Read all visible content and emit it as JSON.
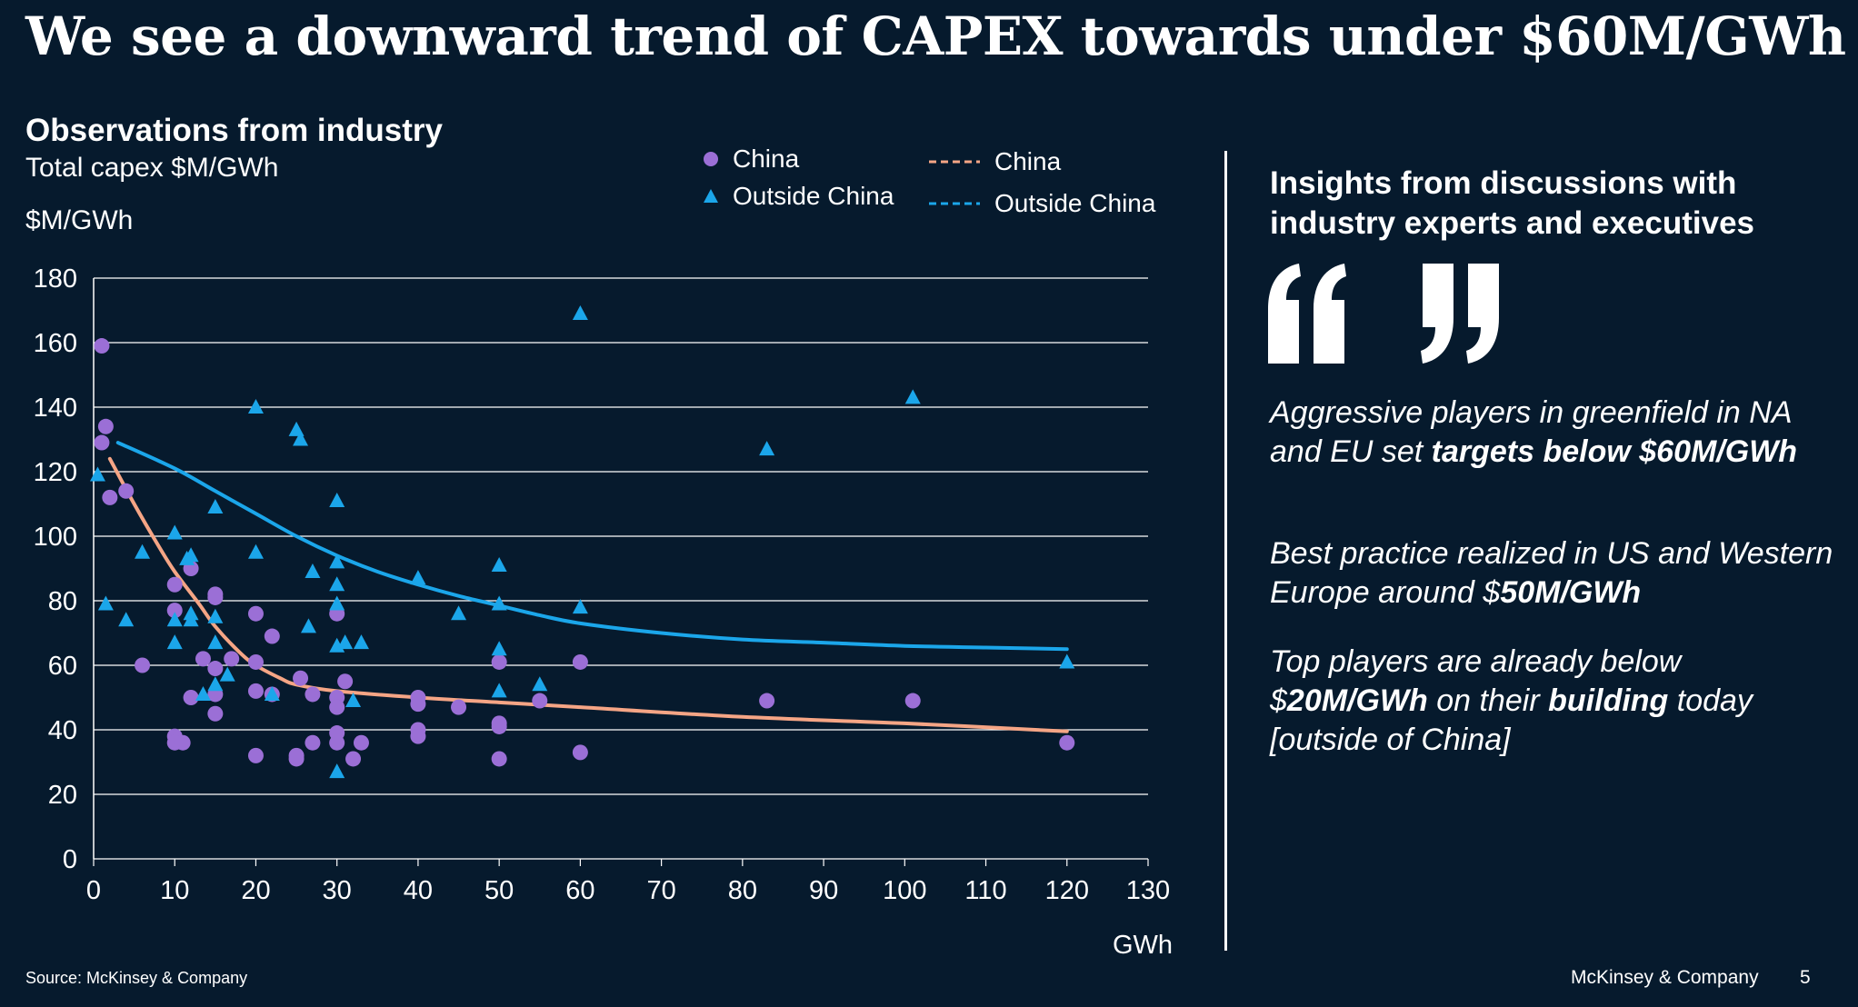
{
  "title": "We see a downward trend of CAPEX towards under $60M/GWh",
  "chart_heading": "Observations from industry",
  "chart_subtitle": "Total capex $M/GWh",
  "legend": {
    "china_points": "China",
    "outside_points": "Outside China",
    "china_trend": "China",
    "outside_trend": "Outside China"
  },
  "insights": {
    "title": "Insights from discussions with industry experts and executives",
    "quote_icon": "quote-marks-icon",
    "items": [
      [
        {
          "t": "Aggressive players in greenfield in NA and EU set ",
          "b": false
        },
        {
          "t": "targets below $60M/GWh",
          "b": true
        }
      ],
      [
        {
          "t": "Best practice realized in US and Western Europe around $",
          "b": false
        },
        {
          "t": "50M/GWh",
          "b": true
        }
      ],
      [
        {
          "t": "Top players are already below $",
          "b": false
        },
        {
          "t": "20M/GWh",
          "b": true
        },
        {
          "t": " on their ",
          "b": false
        },
        {
          "t": "building",
          "b": true
        },
        {
          "t": " today [outside of China]",
          "b": false
        }
      ]
    ]
  },
  "footer": {
    "source": "Source: McKinsey & Company",
    "brand": "McKinsey & Company",
    "page": "5"
  },
  "colors": {
    "background": "#061a2d",
    "china": "#9b6fd6",
    "outside_china": "#1ba6ea",
    "china_trend": "#f5a585",
    "outside_trend": "#1ba6ea",
    "grid": "#ffffff"
  },
  "chart_data": {
    "type": "scatter",
    "ylabel": "$M/GWh",
    "xlabel": "GWh",
    "xlim": [
      0,
      130
    ],
    "ylim": [
      0,
      180
    ],
    "x_ticks": [
      0,
      10,
      20,
      30,
      40,
      50,
      60,
      70,
      80,
      90,
      100,
      110,
      120,
      130
    ],
    "y_ticks": [
      0,
      20,
      40,
      60,
      80,
      100,
      120,
      140,
      160,
      180
    ],
    "grid": "horizontal",
    "legend_position": "top",
    "series": [
      {
        "name": "China",
        "marker": "circle",
        "points": [
          [
            1,
            159
          ],
          [
            1,
            129
          ],
          [
            1.5,
            134
          ],
          [
            2,
            112
          ],
          [
            4,
            114
          ],
          [
            6,
            60
          ],
          [
            10,
            85
          ],
          [
            10,
            77
          ],
          [
            10,
            38
          ],
          [
            10,
            36
          ],
          [
            11,
            36
          ],
          [
            12,
            90
          ],
          [
            12,
            50
          ],
          [
            13.5,
            62
          ],
          [
            15,
            81
          ],
          [
            15,
            82
          ],
          [
            15,
            59
          ],
          [
            15,
            51
          ],
          [
            15,
            45
          ],
          [
            17,
            62
          ],
          [
            20,
            76
          ],
          [
            20,
            61
          ],
          [
            20,
            52
          ],
          [
            20,
            32
          ],
          [
            22,
            69
          ],
          [
            22,
            51
          ],
          [
            25,
            31
          ],
          [
            25,
            32
          ],
          [
            25.5,
            56
          ],
          [
            27,
            51
          ],
          [
            27,
            36
          ],
          [
            30,
            76
          ],
          [
            30,
            50
          ],
          [
            30,
            47
          ],
          [
            30,
            39
          ],
          [
            30,
            36
          ],
          [
            31,
            55
          ],
          [
            32,
            31
          ],
          [
            33,
            36
          ],
          [
            40,
            50
          ],
          [
            40,
            48
          ],
          [
            40,
            40
          ],
          [
            40,
            38
          ],
          [
            45,
            47
          ],
          [
            50,
            61
          ],
          [
            50,
            42
          ],
          [
            50,
            41
          ],
          [
            50,
            31
          ],
          [
            55,
            49
          ],
          [
            60,
            61
          ],
          [
            60,
            33
          ],
          [
            83,
            49
          ],
          [
            101,
            49
          ],
          [
            120,
            36
          ]
        ]
      },
      {
        "name": "Outside China",
        "marker": "triangle",
        "points": [
          [
            0.5,
            119
          ],
          [
            1.5,
            79
          ],
          [
            4,
            74
          ],
          [
            6,
            95
          ],
          [
            10,
            101
          ],
          [
            10,
            74
          ],
          [
            10,
            67
          ],
          [
            11.5,
            93
          ],
          [
            12,
            94
          ],
          [
            12,
            76
          ],
          [
            12,
            74
          ],
          [
            13.5,
            51
          ],
          [
            15,
            109
          ],
          [
            15,
            75
          ],
          [
            15,
            67
          ],
          [
            15,
            54
          ],
          [
            16.5,
            57
          ],
          [
            20,
            140
          ],
          [
            20,
            95
          ],
          [
            22,
            51
          ],
          [
            25,
            133
          ],
          [
            25.5,
            130
          ],
          [
            26.5,
            72
          ],
          [
            27,
            89
          ],
          [
            30,
            111
          ],
          [
            30,
            92
          ],
          [
            30,
            85
          ],
          [
            30,
            79
          ],
          [
            30,
            66
          ],
          [
            30,
            27
          ],
          [
            31,
            67
          ],
          [
            32,
            49
          ],
          [
            33,
            67
          ],
          [
            40,
            87
          ],
          [
            45,
            76
          ],
          [
            50,
            91
          ],
          [
            50,
            79
          ],
          [
            50,
            65
          ],
          [
            50,
            52
          ],
          [
            55,
            54
          ],
          [
            60,
            169
          ],
          [
            60,
            78
          ],
          [
            83,
            127
          ],
          [
            101,
            143
          ],
          [
            120,
            61
          ]
        ]
      }
    ],
    "trendlines": [
      {
        "name": "China",
        "legend_style": "dashed",
        "points": [
          [
            2,
            124
          ],
          [
            5,
            110
          ],
          [
            8,
            97
          ],
          [
            10,
            89
          ],
          [
            13,
            79
          ],
          [
            15,
            72
          ],
          [
            18,
            64
          ],
          [
            20,
            60
          ],
          [
            23,
            56
          ],
          [
            25,
            54
          ],
          [
            30,
            52
          ],
          [
            40,
            50
          ],
          [
            50,
            48.5
          ],
          [
            60,
            47
          ],
          [
            80,
            44
          ],
          [
            100,
            42
          ],
          [
            120,
            39.5
          ]
        ]
      },
      {
        "name": "Outside China",
        "legend_style": "dashed",
        "points": [
          [
            3,
            129
          ],
          [
            10,
            121
          ],
          [
            15,
            114
          ],
          [
            20,
            107
          ],
          [
            25,
            100
          ],
          [
            30,
            94
          ],
          [
            35,
            89
          ],
          [
            40,
            85
          ],
          [
            45,
            81.5
          ],
          [
            50,
            78.5
          ],
          [
            55,
            75.5
          ],
          [
            60,
            73
          ],
          [
            70,
            70
          ],
          [
            80,
            68
          ],
          [
            90,
            67
          ],
          [
            100,
            66
          ],
          [
            110,
            65.5
          ],
          [
            120,
            65
          ]
        ]
      }
    ]
  }
}
